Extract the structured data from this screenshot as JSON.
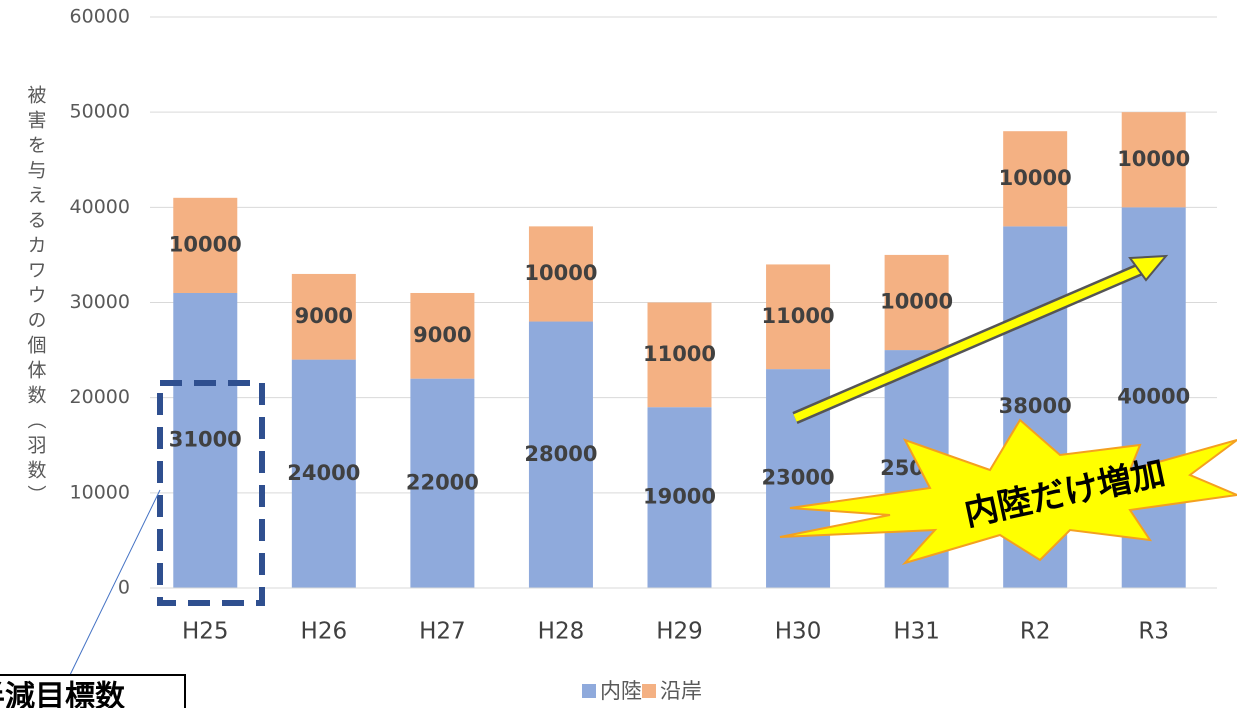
{
  "chart_data": {
    "type": "stacked_bar",
    "y_label": "被害を与えるカワウの個体数（羽数）",
    "categories": [
      "H25",
      "H26",
      "H27",
      "H28",
      "H29",
      "H30",
      "H31",
      "R2",
      "R3"
    ],
    "series": [
      {
        "name": "内陸",
        "color": "#8faadc",
        "values": [
          31000,
          24000,
          22000,
          28000,
          19000,
          23000,
          25000,
          38000,
          40000
        ]
      },
      {
        "name": "沿岸",
        "color": "#f4b183",
        "values": [
          10000,
          9000,
          9000,
          10000,
          11000,
          11000,
          10000,
          10000,
          10000
        ]
      }
    ],
    "ylim": [
      0,
      60000
    ],
    "yticks": [
      0,
      10000,
      20000,
      30000,
      40000,
      50000,
      60000
    ],
    "grid": true,
    "legend": "bottom",
    "annotations": {
      "callout": "半減目標数",
      "burst": "内陸だけ増加"
    }
  }
}
